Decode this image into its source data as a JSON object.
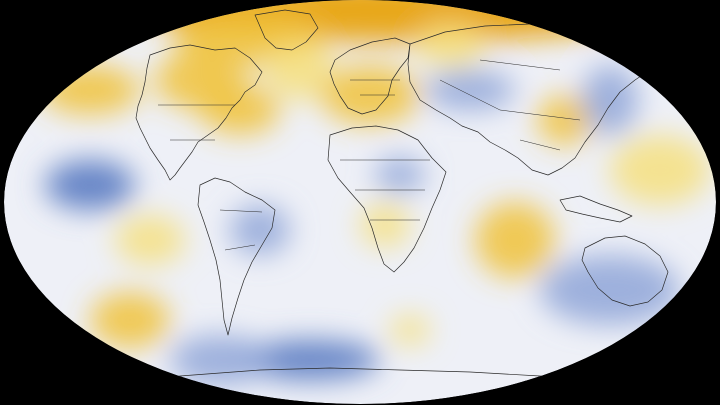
{
  "map": {
    "projection": "robinson-like-ellipse",
    "background_color": "#000000",
    "base_color": "#eef0f7",
    "border_color": "#2a2a2a",
    "colors": {
      "warm_strong": "#e8a312",
      "warm": "#f0c23a",
      "warm_light": "#f6e07f",
      "cool": "#8fa6d8",
      "cool_strong": "#5f7fc4"
    },
    "anomalies": [
      {
        "name": "arctic-warm",
        "kind": "warm_strong"
      },
      {
        "name": "greenland-warm",
        "kind": "warm"
      },
      {
        "name": "north-pacific-warm",
        "kind": "warm"
      },
      {
        "name": "alaska-warm",
        "kind": "warm"
      },
      {
        "name": "east-canada-warm",
        "kind": "warm"
      },
      {
        "name": "north-atlantic-warm",
        "kind": "warm_light"
      },
      {
        "name": "europe-warm",
        "kind": "warm"
      },
      {
        "name": "scandinavia-warm",
        "kind": "warm_light"
      },
      {
        "name": "china-warm",
        "kind": "warm"
      },
      {
        "name": "west-pacific-warm",
        "kind": "warm_light"
      },
      {
        "name": "central-america-warm",
        "kind": "warm_light"
      },
      {
        "name": "south-atlantic-warm",
        "kind": "warm_light"
      },
      {
        "name": "indian-ocean-warm",
        "kind": "warm"
      },
      {
        "name": "south-pacific-warm",
        "kind": "warm"
      },
      {
        "name": "southern-ocean-warm",
        "kind": "warm_light"
      },
      {
        "name": "brazil-cool",
        "kind": "cool"
      },
      {
        "name": "pacific-cool",
        "kind": "cool_strong"
      },
      {
        "name": "russia-cool",
        "kind": "cool"
      },
      {
        "name": "japan-cool",
        "kind": "cool"
      },
      {
        "name": "australia-cool",
        "kind": "cool"
      },
      {
        "name": "antarctica-cool",
        "kind": "cool_strong"
      },
      {
        "name": "north-africa-cool",
        "kind": "cool"
      },
      {
        "name": "east-pacific-cool",
        "kind": "cool"
      }
    ]
  }
}
